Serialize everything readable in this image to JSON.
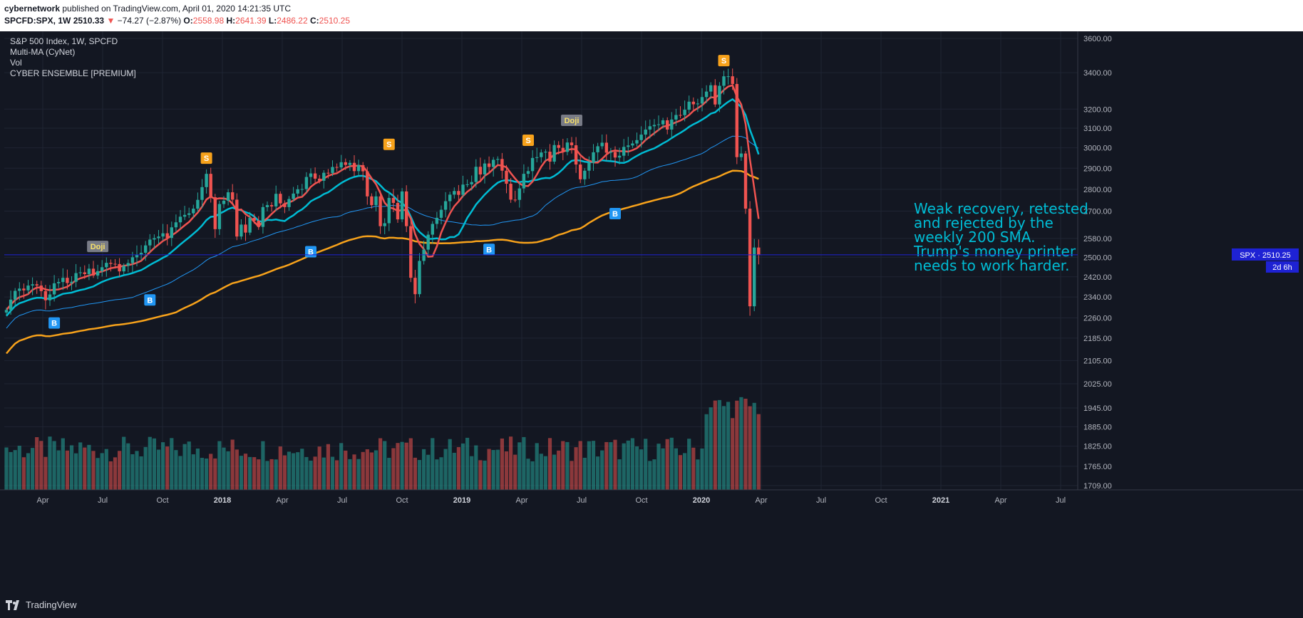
{
  "header": {
    "author": "cybernetwork",
    "published_text": " published on TradingView.com, April 01, 2020 14:21:35 UTC",
    "symbol": "SPCFD:SPX, 1W",
    "last": "2510.33",
    "arrow": "▼",
    "change": "−74.27 (−2.87%)",
    "o_label": "O:",
    "o": "2558.98",
    "h_label": "H:",
    "h": "2641.39",
    "l_label": "L:",
    "l": "2486.22",
    "c_label": "C:",
    "c": "2510.25"
  },
  "legend": [
    "S&P 500 Index, 1W, SPCFD",
    "Multi-MA (CyNet)",
    "Vol",
    "CYBER ENSEMBLE [PREMIUM]"
  ],
  "annotation": [
    "Weak recovery, retested",
    "and rejected by the",
    "weekly 200 SMA.",
    "Trump's money printer",
    "needs to work harder."
  ],
  "price_tag": {
    "text": "SPX · 2510.25",
    "countdown": "2d 6h"
  },
  "footer": {
    "brand": "TradingView"
  },
  "colors": {
    "background": "#131722",
    "bull": "#26a69a",
    "bear": "#ef5350",
    "ma_short": "#ef5350",
    "ma_mid": "#00bcd4",
    "ma_long": "#2196f3",
    "ma_200": "#f7a21b",
    "annotation": "#00bcd4",
    "price_tag": "#1e22d4"
  },
  "chart_data": {
    "type": "candlestick",
    "y_scale": "log",
    "ylim": [
      1690,
      3700
    ],
    "y_ticks": [
      "3600.00",
      "3400.00",
      "3200.00",
      "3100.00",
      "3000.00",
      "2900.00",
      "2800.00",
      "2700.00",
      "2580.00",
      "2500.00",
      "2420.00",
      "2340.00",
      "2260.00",
      "2185.00",
      "2105.00",
      "2025.00",
      "1945.00",
      "1885.00",
      "1825.00",
      "1765.00",
      "1709.00"
    ],
    "x_labels": [
      "Apr",
      "Jul",
      "Oct",
      "2018",
      "Apr",
      "Jul",
      "Oct",
      "2019",
      "Apr",
      "Jul",
      "Oct",
      "2020",
      "Apr",
      "Jul",
      "Oct",
      "2021",
      "Apr",
      "Jul"
    ],
    "grid": true,
    "last_price": 2510.25,
    "weekly_closes": [
      2290,
      2330,
      2364,
      2373,
      2366,
      2385,
      2390,
      2385,
      2363,
      2327,
      2350,
      2394,
      2399,
      2416,
      2395,
      2400,
      2435,
      2438,
      2431,
      2453,
      2425,
      2443,
      2459,
      2477,
      2473,
      2472,
      2442,
      2465,
      2476,
      2500,
      2510,
      2519,
      2550,
      2575,
      2581,
      2588,
      2602,
      2582,
      2628,
      2650,
      2675,
      2683,
      2690,
      2711,
      2751,
      2810,
      2873,
      2763,
      2620,
      2732,
      2747,
      2786,
      2752,
      2588,
      2640,
      2605,
      2670,
      2657,
      2630,
      2718,
      2727,
      2721,
      2779,
      2735,
      2718,
      2755,
      2780,
      2800,
      2801,
      2858,
      2875,
      2850,
      2840,
      2878,
      2877,
      2906,
      2904,
      2929,
      2916,
      2926,
      2886,
      2915,
      2885,
      2767,
      2727,
      2767,
      2633,
      2646,
      2760,
      2737,
      2663,
      2790,
      2633,
      2416,
      2351,
      2485,
      2532,
      2596,
      2643,
      2670,
      2706,
      2745,
      2775,
      2792,
      2774,
      2822,
      2823,
      2834,
      2907,
      2870,
      2923,
      2906,
      2941,
      2945,
      2888,
      2826,
      2752,
      2751,
      2804,
      2873,
      2886,
      2950,
      2954,
      2977,
      2981,
      2932,
      3014,
      3000,
      2980,
      3027,
      3013,
      2918,
      2847,
      2888,
      2926,
      2978,
      3008,
      3026,
      2976,
      2980,
      2952,
      2961,
      3005,
      3012,
      3022,
      3039,
      3067,
      3093,
      3110,
      3117,
      3120,
      3141,
      3093,
      3145,
      3169,
      3168,
      3197,
      3240,
      3226,
      3230,
      3265,
      3295,
      3330,
      3225,
      3327,
      3380,
      3380,
      3337,
      2954,
      2972,
      2711,
      2304,
      2541,
      2510
    ],
    "annotations_text": [
      "S",
      "Doji",
      "B"
    ]
  }
}
